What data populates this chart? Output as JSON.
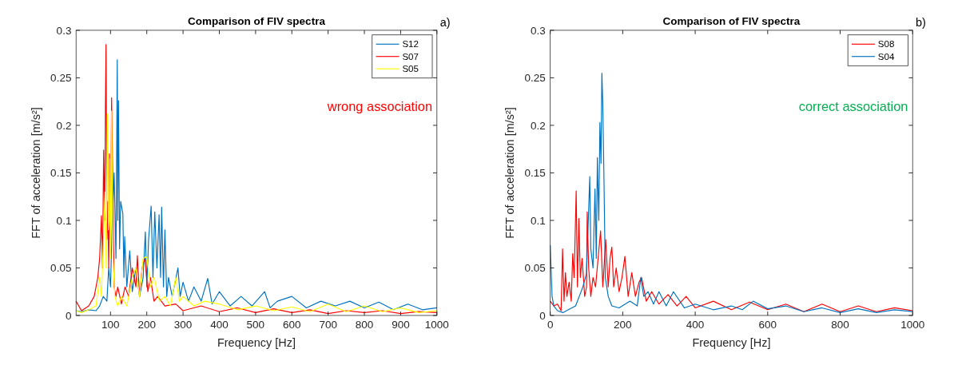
{
  "chart_data": [
    {
      "type": "line",
      "title": "Comparison of FIV spectra",
      "xlabel": "Frequency [Hz]",
      "ylabel": "FFT of acceleration [m/s²]",
      "annotations": [
        "a)",
        "wrong association"
      ],
      "xlim": [
        5,
        1000
      ],
      "xticks": [
        100,
        200,
        300,
        400,
        500,
        600,
        700,
        800,
        900,
        1000
      ],
      "ylim": [
        0,
        0.3
      ],
      "yticks": [
        0,
        0.05,
        0.1,
        0.15,
        0.2,
        0.25,
        0.3
      ],
      "legend": "top right",
      "series": [
        {
          "name": "S12",
          "color": "#0072bd",
          "x": [
            5,
            20,
            40,
            60,
            70,
            80,
            90,
            95,
            100,
            105,
            110,
            115,
            118.6,
            120,
            122,
            125,
            128,
            134,
            137,
            139,
            145,
            153,
            160,
            170,
            180,
            190,
            196,
            200,
            205,
            212,
            217,
            222,
            228,
            234,
            238,
            241,
            246,
            250,
            255,
            260,
            270,
            286,
            292,
            300,
            315,
            330,
            350,
            368,
            380,
            400,
            430,
            460,
            490,
            525,
            540,
            560,
            600,
            640,
            680,
            720,
            760,
            800,
            840,
            880,
            920,
            960,
            1000
          ],
          "values": [
            0.005,
            0.004,
            0.006,
            0.005,
            0.01,
            0.02,
            0.015,
            0.05,
            0.03,
            0.1,
            0.15,
            0.06,
            0.269,
            0.1,
            0.226,
            0.07,
            0.12,
            0.107,
            0.04,
            0.083,
            0.03,
            0.068,
            0.025,
            0.05,
            0.02,
            0.04,
            0.088,
            0.03,
            0.08,
            0.115,
            0.04,
            0.109,
            0.05,
            0.106,
            0.04,
            0.114,
            0.03,
            0.09,
            0.02,
            0.04,
            0.02,
            0.05,
            0.02,
            0.035,
            0.015,
            0.03,
            0.015,
            0.039,
            0.012,
            0.025,
            0.01,
            0.02,
            0.01,
            0.025,
            0.008,
            0.015,
            0.02,
            0.008,
            0.015,
            0.01,
            0.015,
            0.008,
            0.014,
            0.006,
            0.012,
            0.006,
            0.008
          ]
        },
        {
          "name": "S07",
          "color": "#ff0000",
          "x": [
            5,
            20,
            40,
            55,
            60,
            65,
            70,
            75,
            78,
            81,
            84,
            86,
            87.6,
            90,
            92,
            95,
            97,
            100,
            103,
            107,
            110,
            115,
            120,
            130,
            140,
            150,
            160,
            170,
            174,
            180,
            187,
            195,
            203,
            210,
            220,
            230,
            250,
            280,
            300,
            350,
            400,
            450,
            500,
            550,
            600,
            650,
            700,
            750,
            800,
            850,
            900,
            950,
            1000
          ],
          "values": [
            0.015,
            0.005,
            0.01,
            0.02,
            0.03,
            0.04,
            0.06,
            0.105,
            0.05,
            0.174,
            0.1,
            0.22,
            0.285,
            0.08,
            0.12,
            0.05,
            0.17,
            0.08,
            0.229,
            0.12,
            0.03,
            0.02,
            0.03,
            0.012,
            0.03,
            0.02,
            0.05,
            0.03,
            0.063,
            0.02,
            0.05,
            0.06,
            0.025,
            0.04,
            0.015,
            0.02,
            0.01,
            0.012,
            0.005,
            0.01,
            0.004,
            0.008,
            0.003,
            0.007,
            0.003,
            0.006,
            0.002,
            0.005,
            0.003,
            0.005,
            0.002,
            0.004,
            0.003
          ]
        },
        {
          "name": "S05",
          "color": "#ffff00",
          "x": [
            5,
            20,
            40,
            60,
            70,
            75,
            80,
            85,
            88,
            92,
            94,
            96,
            98,
            100,
            103,
            105,
            107,
            112,
            120,
            130,
            145,
            160,
            170,
            180,
            190,
            200,
            210,
            220,
            235,
            250,
            265,
            280,
            290,
            300,
            330,
            360,
            400,
            450,
            500,
            550,
            600,
            650,
            700,
            750,
            800,
            850,
            900,
            950,
            1000
          ],
          "values": [
            0.005,
            0.003,
            0.006,
            0.01,
            0.04,
            0.02,
            0.075,
            0.13,
            0.05,
            0.212,
            0.09,
            0.1,
            0.165,
            0.06,
            0.215,
            0.12,
            0.06,
            0.02,
            0.01,
            0.02,
            0.01,
            0.04,
            0.05,
            0.02,
            0.06,
            0.062,
            0.03,
            0.04,
            0.015,
            0.02,
            0.01,
            0.04,
            0.015,
            0.02,
            0.01,
            0.015,
            0.012,
            0.006,
            0.01,
            0.005,
            0.009,
            0.004,
            0.012,
            0.004,
            0.01,
            0.004,
            0.008,
            0.003,
            0.005
          ]
        }
      ]
    },
    {
      "type": "line",
      "title": "Comparison of FIV spectra",
      "xlabel": "Frequency [Hz]",
      "ylabel": "FFT of acceleration [m/s²]",
      "annotations": [
        "b)",
        "correct association"
      ],
      "xlim": [
        0,
        1000
      ],
      "xticks": [
        0,
        200,
        400,
        600,
        800,
        1000
      ],
      "ylim": [
        0,
        0.3
      ],
      "yticks": [
        0,
        0.05,
        0.1,
        0.15,
        0.2,
        0.25,
        0.3
      ],
      "legend": "top right",
      "series": [
        {
          "name": "S08",
          "color": "#ff0000",
          "x": [
            0,
            10,
            20,
            30,
            34,
            38,
            42,
            46,
            52,
            58,
            62,
            66,
            71.6,
            75,
            79,
            83,
            88,
            95,
            100,
            102,
            106,
            112,
            118,
            125,
            132,
            139,
            145,
            153,
            160,
            165,
            170,
            175,
            182,
            190,
            198,
            206,
            215,
            225,
            235,
            245,
            252,
            265,
            280,
            300,
            325,
            350,
            375,
            400,
            450,
            500,
            550,
            600,
            650,
            700,
            750,
            800,
            850,
            900,
            950,
            1000
          ],
          "values": [
            0.015,
            0.01,
            0.012,
            0.005,
            0.07,
            0.015,
            0.045,
            0.02,
            0.035,
            0.015,
            0.065,
            0.04,
            0.131,
            0.03,
            0.102,
            0.04,
            0.06,
            0.02,
            0.03,
            0.109,
            0.05,
            0.02,
            0.04,
            0.03,
            0.06,
            0.089,
            0.03,
            0.08,
            0.03,
            0.06,
            0.072,
            0.03,
            0.05,
            0.025,
            0.04,
            0.062,
            0.02,
            0.045,
            0.02,
            0.035,
            0.04,
            0.015,
            0.025,
            0.012,
            0.022,
            0.01,
            0.02,
            0.008,
            0.015,
            0.006,
            0.014,
            0.006,
            0.012,
            0.004,
            0.012,
            0.004,
            0.01,
            0.004,
            0.008,
            0.005
          ]
        },
        {
          "name": "S04",
          "color": "#0072bd",
          "x": [
            0,
            5,
            10,
            20,
            35,
            50,
            70,
            80,
            90,
            100,
            105,
            109,
            112,
            118,
            123.5,
            127,
            130,
            134,
            137,
            140,
            142.5,
            145,
            148,
            152,
            160,
            170,
            190,
            220,
            240,
            250,
            258,
            270,
            285,
            300,
            320,
            340,
            370,
            400,
            450,
            500,
            530,
            560,
            600,
            650,
            700,
            750,
            800,
            850,
            900,
            950,
            1000
          ],
          "values": [
            0.074,
            0.02,
            0.01,
            0.005,
            0.003,
            0.006,
            0.01,
            0.02,
            0.03,
            0.044,
            0.1,
            0.146,
            0.07,
            0.05,
            0.133,
            0.06,
            0.166,
            0.1,
            0.203,
            0.16,
            0.255,
            0.222,
            0.15,
            0.04,
            0.02,
            0.01,
            0.008,
            0.015,
            0.01,
            0.04,
            0.02,
            0.025,
            0.012,
            0.025,
            0.01,
            0.025,
            0.008,
            0.012,
            0.006,
            0.01,
            0.006,
            0.015,
            0.007,
            0.01,
            0.004,
            0.008,
            0.003,
            0.007,
            0.003,
            0.006,
            0.004
          ]
        }
      ]
    }
  ]
}
